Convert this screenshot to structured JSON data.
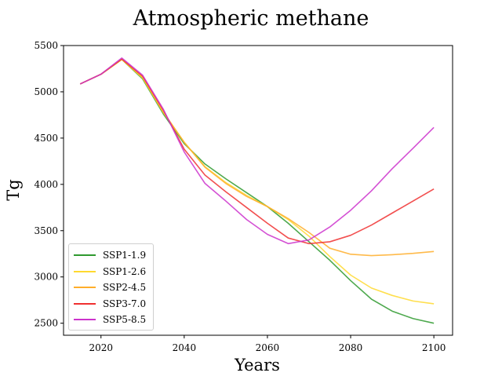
{
  "chart_data": {
    "type": "line",
    "title": "Atmospheric methane",
    "xlabel": "Years",
    "ylabel": "Tg",
    "xlim": [
      2011,
      2104.5
    ],
    "ylim": [
      2370,
      5500
    ],
    "xticks": [
      2020,
      2040,
      2060,
      2080,
      2100
    ],
    "yticks": [
      2500,
      3000,
      3500,
      4000,
      4500,
      5000,
      5500
    ],
    "grid": false,
    "legend_position": "lower-left",
    "x": [
      2015,
      2020,
      2025,
      2030,
      2035,
      2040,
      2045,
      2050,
      2055,
      2060,
      2065,
      2070,
      2075,
      2080,
      2085,
      2090,
      2095,
      2100
    ],
    "series": [
      {
        "name": "SSP1-1.9",
        "color": "#2f9a2f",
        "values": [
          5085,
          5190,
          5350,
          5140,
          4760,
          4440,
          4220,
          4060,
          3910,
          3760,
          3580,
          3380,
          3180,
          2960,
          2760,
          2630,
          2550,
          2500
        ]
      },
      {
        "name": "SSP1-2.6",
        "color": "#ffd92f",
        "values": [
          5085,
          5190,
          5350,
          5150,
          4775,
          4455,
          4190,
          4020,
          3880,
          3760,
          3620,
          3440,
          3220,
          3020,
          2880,
          2800,
          2740,
          2710
        ]
      },
      {
        "name": "SSP2-4.5",
        "color": "#ffae2a",
        "values": [
          5085,
          5190,
          5350,
          5160,
          4780,
          4455,
          4185,
          4010,
          3870,
          3760,
          3630,
          3480,
          3310,
          3245,
          3230,
          3240,
          3255,
          3275
        ]
      },
      {
        "name": "SSP3-7.0",
        "color": "#f03030",
        "values": [
          5085,
          5190,
          5355,
          5170,
          4800,
          4380,
          4100,
          3920,
          3750,
          3580,
          3420,
          3360,
          3380,
          3450,
          3560,
          3690,
          3820,
          3950
        ]
      },
      {
        "name": "SSP5-8.5",
        "color": "#cc33cc",
        "values": [
          5085,
          5190,
          5365,
          5180,
          4810,
          4350,
          4010,
          3820,
          3620,
          3460,
          3360,
          3400,
          3540,
          3720,
          3930,
          4170,
          4390,
          4615
        ]
      }
    ]
  }
}
